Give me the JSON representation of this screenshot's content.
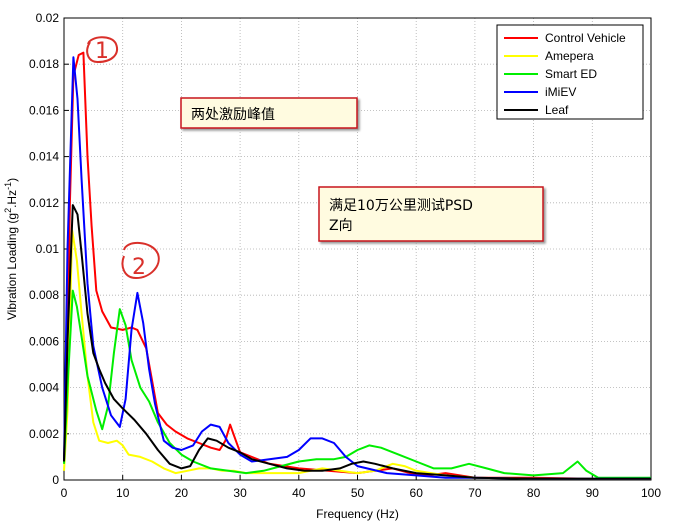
{
  "chart_data": {
    "type": "line",
    "title": "",
    "xlabel": "Frequency (Hz)",
    "ylabel": "Vibration Loading (g",
    "ylabel_sup1": "2",
    "ylabel_mid": ".Hz",
    "ylabel_sup2": "-1",
    "ylabel_end": ")",
    "xlim": [
      0,
      100
    ],
    "ylim": [
      0,
      0.02
    ],
    "xticks": [
      0,
      10,
      20,
      30,
      40,
      50,
      60,
      70,
      80,
      90,
      100
    ],
    "yticks": [
      0,
      0.002,
      0.004,
      0.006,
      0.008,
      0.01,
      0.012,
      0.014,
      0.016,
      0.018,
      0.02
    ],
    "ytick_labels": [
      "0",
      "0.002",
      "0.004",
      "0.006",
      "0.008",
      "0.01",
      "0.012",
      "0.014",
      "0.016",
      "0.018",
      "0.02"
    ],
    "grid": true,
    "legend_position": "top-right",
    "series": [
      {
        "name": "Control Vehicle",
        "color": "#ff0000",
        "points": [
          [
            0,
            0.0008
          ],
          [
            0.5,
            0.004
          ],
          [
            1,
            0.012
          ],
          [
            1.6,
            0.0175
          ],
          [
            2.5,
            0.0184
          ],
          [
            3.3,
            0.0185
          ],
          [
            4,
            0.014
          ],
          [
            4.7,
            0.011
          ],
          [
            5.5,
            0.0082
          ],
          [
            6.5,
            0.0073
          ],
          [
            8,
            0.0066
          ],
          [
            10,
            0.0065
          ],
          [
            11.5,
            0.0066
          ],
          [
            12.5,
            0.0065
          ],
          [
            14,
            0.0057
          ],
          [
            15,
            0.0043
          ],
          [
            16,
            0.0029
          ],
          [
            17.5,
            0.0024
          ],
          [
            19,
            0.0021
          ],
          [
            21,
            0.0018
          ],
          [
            23,
            0.0016
          ],
          [
            25,
            0.0014
          ],
          [
            26.5,
            0.0013
          ],
          [
            27.5,
            0.0017
          ],
          [
            28.3,
            0.0024
          ],
          [
            29,
            0.0019
          ],
          [
            30,
            0.0012
          ],
          [
            32,
            0.001
          ],
          [
            35,
            0.0007
          ],
          [
            40,
            0.0005
          ],
          [
            45,
            0.0004
          ],
          [
            50,
            0.0003
          ],
          [
            53,
            0.0004
          ],
          [
            56,
            0.0005
          ],
          [
            59,
            0.0003
          ],
          [
            62,
            0.0002
          ],
          [
            65,
            0.0003
          ],
          [
            70,
            0.0001
          ],
          [
            80,
            0.0001
          ],
          [
            90,
            5e-05
          ],
          [
            100,
            5e-05
          ]
        ]
      },
      {
        "name": "Amepera",
        "color": "#ffff00",
        "points": [
          [
            0,
            0.0004
          ],
          [
            0.6,
            0.003
          ],
          [
            1.4,
            0.0108
          ],
          [
            2.2,
            0.0095
          ],
          [
            3,
            0.0072
          ],
          [
            4,
            0.0045
          ],
          [
            5,
            0.0025
          ],
          [
            6,
            0.0017
          ],
          [
            7.5,
            0.0016
          ],
          [
            9,
            0.0017
          ],
          [
            10,
            0.0015
          ],
          [
            11,
            0.0011
          ],
          [
            13,
            0.001
          ],
          [
            15,
            0.0008
          ],
          [
            17,
            0.0005
          ],
          [
            19,
            0.0003
          ],
          [
            21,
            0.0004
          ],
          [
            23,
            0.0005
          ],
          [
            25,
            0.0005
          ],
          [
            27,
            0.0004
          ],
          [
            29,
            0.0004
          ],
          [
            31,
            0.0003
          ],
          [
            35,
            0.0003
          ],
          [
            40,
            0.0003
          ],
          [
            44,
            0.0005
          ],
          [
            47,
            0.0004
          ],
          [
            50,
            0.0003
          ],
          [
            53,
            0.0004
          ],
          [
            56,
            0.0007
          ],
          [
            58,
            0.0006
          ],
          [
            60,
            0.0004
          ],
          [
            65,
            0.0002
          ],
          [
            70,
            0.0001
          ],
          [
            80,
            5e-05
          ],
          [
            90,
            5e-05
          ],
          [
            100,
            5e-05
          ]
        ]
      },
      {
        "name": "Smart ED",
        "color": "#00ee00",
        "points": [
          [
            0,
            0.0007
          ],
          [
            0.7,
            0.0045
          ],
          [
            1.5,
            0.0082
          ],
          [
            2.2,
            0.0075
          ],
          [
            3,
            0.0062
          ],
          [
            4,
            0.0045
          ],
          [
            5.5,
            0.003
          ],
          [
            6.5,
            0.0022
          ],
          [
            7.5,
            0.0032
          ],
          [
            8.5,
            0.0055
          ],
          [
            9.5,
            0.0074
          ],
          [
            10.5,
            0.0067
          ],
          [
            11.5,
            0.0052
          ],
          [
            13,
            0.004
          ],
          [
            14.5,
            0.0034
          ],
          [
            16,
            0.0025
          ],
          [
            18,
            0.0016
          ],
          [
            20,
            0.0011
          ],
          [
            22,
            0.0008
          ],
          [
            25,
            0.0005
          ],
          [
            28,
            0.0004
          ],
          [
            31,
            0.0003
          ],
          [
            34,
            0.0004
          ],
          [
            37,
            0.0006
          ],
          [
            40,
            0.0008
          ],
          [
            43,
            0.0009
          ],
          [
            46,
            0.0009
          ],
          [
            48,
            0.001
          ],
          [
            50,
            0.0013
          ],
          [
            52,
            0.0015
          ],
          [
            54,
            0.0014
          ],
          [
            57,
            0.0011
          ],
          [
            60,
            0.0008
          ],
          [
            63,
            0.0005
          ],
          [
            66,
            0.0005
          ],
          [
            69,
            0.0007
          ],
          [
            72,
            0.0005
          ],
          [
            75,
            0.0003
          ],
          [
            80,
            0.0002
          ],
          [
            85,
            0.0003
          ],
          [
            87.5,
            0.0008
          ],
          [
            89,
            0.0004
          ],
          [
            91,
            0.0001
          ],
          [
            95,
            0.0001
          ],
          [
            100,
            0.0001
          ]
        ]
      },
      {
        "name": "iMiEV",
        "color": "#0000ff",
        "points": [
          [
            0,
            0.0008
          ],
          [
            0.6,
            0.01
          ],
          [
            1.6,
            0.0183
          ],
          [
            2.3,
            0.0165
          ],
          [
            3,
            0.013
          ],
          [
            4,
            0.0085
          ],
          [
            5,
            0.0058
          ],
          [
            6.5,
            0.004
          ],
          [
            8,
            0.0028
          ],
          [
            9.5,
            0.0023
          ],
          [
            10.5,
            0.0035
          ],
          [
            11.5,
            0.0065
          ],
          [
            12.5,
            0.0081
          ],
          [
            13.5,
            0.0068
          ],
          [
            14.5,
            0.0048
          ],
          [
            15.5,
            0.0033
          ],
          [
            17,
            0.0017
          ],
          [
            18.5,
            0.0014
          ],
          [
            20,
            0.0013
          ],
          [
            22,
            0.0015
          ],
          [
            23.5,
            0.0021
          ],
          [
            25,
            0.0024
          ],
          [
            26.5,
            0.0023
          ],
          [
            28,
            0.0016
          ],
          [
            30,
            0.0011
          ],
          [
            32,
            0.0008
          ],
          [
            35,
            0.0009
          ],
          [
            38,
            0.001
          ],
          [
            40,
            0.0013
          ],
          [
            42,
            0.0018
          ],
          [
            44,
            0.0018
          ],
          [
            46,
            0.0016
          ],
          [
            48,
            0.001
          ],
          [
            50,
            0.0006
          ],
          [
            55,
            0.0003
          ],
          [
            60,
            0.0002
          ],
          [
            65,
            0.0001
          ],
          [
            70,
            0.0001
          ],
          [
            80,
            5e-05
          ],
          [
            90,
            5e-05
          ],
          [
            100,
            5e-05
          ]
        ]
      },
      {
        "name": "Leaf",
        "color": "#000000",
        "points": [
          [
            0,
            0.0008
          ],
          [
            0.6,
            0.006
          ],
          [
            1.5,
            0.0119
          ],
          [
            2.3,
            0.0115
          ],
          [
            3,
            0.0098
          ],
          [
            4,
            0.0072
          ],
          [
            5,
            0.0055
          ],
          [
            6,
            0.0048
          ],
          [
            7,
            0.0042
          ],
          [
            8.5,
            0.0035
          ],
          [
            10,
            0.0031
          ],
          [
            12,
            0.0026
          ],
          [
            14,
            0.002
          ],
          [
            16,
            0.0013
          ],
          [
            18,
            0.0007
          ],
          [
            20,
            0.0005
          ],
          [
            21.5,
            0.0006
          ],
          [
            23,
            0.0013
          ],
          [
            24.5,
            0.0018
          ],
          [
            26,
            0.0017
          ],
          [
            28,
            0.0014
          ],
          [
            30,
            0.0012
          ],
          [
            32,
            0.0009
          ],
          [
            35,
            0.0007
          ],
          [
            38,
            0.0005
          ],
          [
            41,
            0.0004
          ],
          [
            44,
            0.0004
          ],
          [
            47,
            0.0005
          ],
          [
            49,
            0.0007
          ],
          [
            51,
            0.0008
          ],
          [
            53,
            0.0007
          ],
          [
            56,
            0.0005
          ],
          [
            60,
            0.0003
          ],
          [
            65,
            0.0002
          ],
          [
            70,
            0.0001
          ],
          [
            80,
            5e-05
          ],
          [
            90,
            5e-05
          ],
          [
            100,
            5e-05
          ]
        ]
      }
    ],
    "annotations": [
      {
        "name": "peak-note",
        "text": "两处激励峰值"
      },
      {
        "name": "test-note",
        "lines": [
          "满足10万公里测试PSD",
          "Z向"
        ]
      },
      {
        "name": "handwritten-1",
        "text": "1"
      },
      {
        "name": "handwritten-2",
        "text": "2"
      }
    ]
  }
}
